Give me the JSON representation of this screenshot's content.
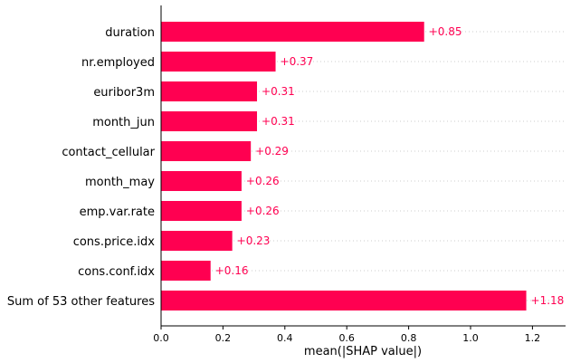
{
  "chart_data": {
    "type": "bar",
    "orientation": "horizontal",
    "categories": [
      "duration",
      "nr.employed",
      "euribor3m",
      "month_jun",
      "contact_cellular",
      "month_may",
      "emp.var.rate",
      "cons.price.idx",
      "cons.conf.idx",
      "Sum of 53 other features"
    ],
    "values": [
      0.85,
      0.37,
      0.31,
      0.31,
      0.29,
      0.26,
      0.26,
      0.23,
      0.16,
      1.18
    ],
    "value_labels": [
      "+0.85",
      "+0.37",
      "+0.31",
      "+0.31",
      "+0.29",
      "+0.26",
      "+0.26",
      "+0.23",
      "+0.16",
      "+1.18"
    ],
    "xlabel": "mean(|SHAP value|)",
    "xticks": [
      0.0,
      0.2,
      0.4,
      0.6,
      0.8,
      1.0,
      1.2
    ],
    "xtick_labels": [
      "0.0",
      "0.2",
      "0.4",
      "0.6",
      "0.8",
      "1.0",
      "1.2"
    ],
    "xlim": [
      0,
      1.31
    ],
    "bar_color": "#ff0051",
    "label_color": "#ff0051",
    "gridlines": "dotted horizontal"
  }
}
